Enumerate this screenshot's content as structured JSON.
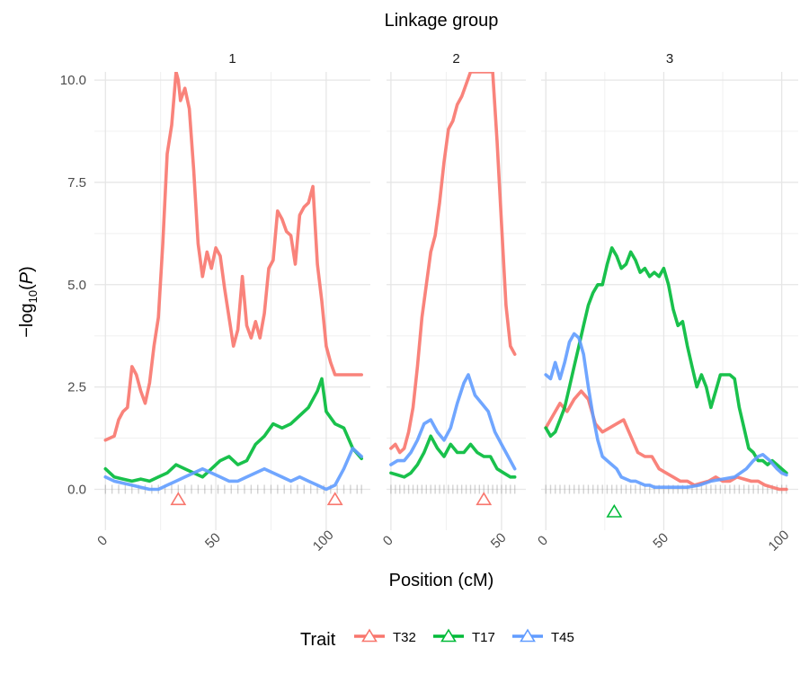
{
  "chart_data": {
    "type": "line",
    "title": "Linkage group",
    "xlabel": "Position (cM)",
    "ylabel_prefix": "−log",
    "ylabel_sub": "10",
    "ylabel_var": "P",
    "ylim": [
      -1.0,
      10.2
    ],
    "y_ticks": [
      0.0,
      2.5,
      5.0,
      7.5,
      10.0
    ],
    "y_tick_labels": [
      "0.0",
      "2.5",
      "5.0",
      "7.5",
      "10.0"
    ],
    "grid": true,
    "legend_position": "bottom",
    "legend_title": "Trait",
    "series_order": [
      "T32",
      "T17",
      "T45"
    ],
    "colors": {
      "T32": "#F8766D",
      "T17": "#00BA38",
      "T45": "#619CFF",
      "marker": "#808080"
    },
    "panels": [
      {
        "label": "1",
        "xlim": [
          -5,
          120
        ],
        "x_ticks": [
          0,
          50,
          100
        ],
        "x_tick_labels": [
          "0",
          "50",
          "100"
        ],
        "series": [
          {
            "name": "T32",
            "x": [
              0,
              4,
              6,
              8,
              10,
              12,
              14,
              16,
              18,
              20,
              22,
              24,
              26,
              28,
              30,
              32,
              33,
              34,
              36,
              38,
              40,
              42,
              44,
              46,
              48,
              50,
              52,
              54,
              56,
              58,
              60,
              62,
              64,
              66,
              68,
              70,
              72,
              74,
              76,
              78,
              80,
              82,
              84,
              86,
              88,
              90,
              92,
              94,
              96,
              98,
              100,
              102,
              104,
              106,
              108,
              110,
              112,
              114,
              116
            ],
            "y": [
              1.2,
              1.3,
              1.7,
              1.9,
              2.0,
              3.0,
              2.8,
              2.4,
              2.1,
              2.6,
              3.5,
              4.2,
              6.0,
              8.2,
              8.9,
              10.2,
              10.0,
              9.5,
              9.8,
              9.3,
              7.8,
              6.0,
              5.2,
              5.8,
              5.4,
              5.9,
              5.7,
              4.9,
              4.2,
              3.5,
              3.9,
              5.2,
              4.0,
              3.7,
              4.1,
              3.7,
              4.3,
              5.4,
              5.6,
              6.8,
              6.6,
              6.3,
              6.2,
              5.5,
              6.7,
              6.9,
              7.0,
              7.4,
              5.5,
              4.6,
              3.5,
              3.1,
              2.8,
              2.8,
              2.8,
              2.8,
              2.8,
              2.8,
              2.8
            ]
          },
          {
            "name": "T17",
            "x": [
              0,
              4,
              8,
              12,
              16,
              20,
              24,
              28,
              32,
              36,
              40,
              44,
              48,
              52,
              56,
              60,
              64,
              68,
              72,
              76,
              80,
              84,
              88,
              92,
              96,
              98,
              100,
              104,
              108,
              112,
              116
            ],
            "y": [
              0.5,
              0.3,
              0.25,
              0.2,
              0.25,
              0.2,
              0.3,
              0.4,
              0.6,
              0.5,
              0.4,
              0.3,
              0.5,
              0.7,
              0.8,
              0.6,
              0.7,
              1.1,
              1.3,
              1.6,
              1.5,
              1.6,
              1.8,
              2.0,
              2.4,
              2.7,
              1.9,
              1.6,
              1.5,
              1.0,
              0.75
            ]
          },
          {
            "name": "T45",
            "x": [
              0,
              4,
              8,
              12,
              16,
              20,
              24,
              28,
              32,
              36,
              40,
              44,
              48,
              52,
              56,
              60,
              64,
              68,
              72,
              76,
              80,
              84,
              88,
              92,
              96,
              100,
              104,
              108,
              112,
              116
            ],
            "y": [
              0.3,
              0.2,
              0.15,
              0.1,
              0.05,
              0.0,
              0.0,
              0.1,
              0.2,
              0.3,
              0.4,
              0.5,
              0.4,
              0.3,
              0.2,
              0.2,
              0.3,
              0.4,
              0.5,
              0.4,
              0.3,
              0.2,
              0.3,
              0.2,
              0.1,
              0.0,
              0.1,
              0.5,
              1.0,
              0.8
            ]
          }
        ],
        "triangles": [
          {
            "trait": "T32",
            "x": 33,
            "y": -0.25
          },
          {
            "trait": "T32",
            "x": 104,
            "y": -0.25
          }
        ],
        "markers": [
          0,
          3,
          6,
          9,
          12,
          15,
          18,
          21,
          24,
          27,
          30,
          33,
          36,
          39,
          42,
          45,
          48,
          51,
          54,
          57,
          60,
          63,
          66,
          69,
          72,
          75,
          78,
          81,
          84,
          87,
          90,
          93,
          96,
          99,
          102,
          105,
          108,
          111,
          114,
          116
        ]
      },
      {
        "label": "2",
        "xlim": [
          -2,
          61
        ],
        "x_ticks": [
          0,
          50
        ],
        "x_tick_labels": [
          "0",
          "50"
        ],
        "series": [
          {
            "name": "T32",
            "x": [
              0,
              2,
              4,
              6,
              8,
              10,
              12,
              14,
              16,
              18,
              20,
              22,
              24,
              26,
              28,
              30,
              32,
              34,
              36,
              38,
              40,
              42,
              44,
              46,
              48,
              50,
              52,
              54,
              56
            ],
            "y": [
              1.0,
              1.1,
              0.9,
              1.0,
              1.4,
              2.0,
              3.0,
              4.2,
              5.0,
              5.8,
              6.2,
              7.0,
              8.0,
              8.8,
              9.0,
              9.4,
              9.6,
              9.9,
              10.2,
              10.2,
              10.2,
              10.2,
              10.2,
              10.2,
              8.5,
              6.5,
              4.5,
              3.5,
              3.3
            ]
          },
          {
            "name": "T17",
            "x": [
              0,
              3,
              6,
              9,
              12,
              15,
              18,
              21,
              24,
              27,
              30,
              33,
              36,
              39,
              42,
              45,
              48,
              51,
              54,
              56
            ],
            "y": [
              0.4,
              0.35,
              0.3,
              0.4,
              0.6,
              0.9,
              1.3,
              1.0,
              0.8,
              1.1,
              0.9,
              0.9,
              1.1,
              0.9,
              0.8,
              0.8,
              0.5,
              0.4,
              0.3,
              0.3
            ]
          },
          {
            "name": "T45",
            "x": [
              0,
              3,
              6,
              9,
              12,
              15,
              18,
              21,
              24,
              27,
              30,
              33,
              35,
              38,
              41,
              44,
              47,
              50,
              53,
              56
            ],
            "y": [
              0.6,
              0.7,
              0.7,
              0.9,
              1.2,
              1.6,
              1.7,
              1.4,
              1.2,
              1.5,
              2.1,
              2.6,
              2.8,
              2.3,
              2.1,
              1.9,
              1.4,
              1.1,
              0.8,
              0.5
            ]
          }
        ],
        "triangles": [
          {
            "trait": "T32",
            "x": 42,
            "y": -0.25
          }
        ],
        "markers": [
          0,
          2,
          4,
          6,
          8,
          10,
          12,
          14,
          16,
          18,
          20,
          22,
          24,
          26,
          28,
          30,
          32,
          34,
          36,
          38,
          40,
          42,
          44,
          46,
          48,
          50,
          52,
          54,
          56
        ]
      },
      {
        "label": "3",
        "xlim": [
          -2,
          107
        ],
        "x_ticks": [
          0,
          50,
          100
        ],
        "x_tick_labels": [
          "0",
          "50",
          "100"
        ],
        "series": [
          {
            "name": "T32",
            "x": [
              0,
              3,
              6,
              9,
              12,
              15,
              18,
              21,
              24,
              27,
              30,
              33,
              36,
              39,
              42,
              45,
              48,
              51,
              54,
              57,
              60,
              63,
              66,
              69,
              72,
              75,
              78,
              81,
              84,
              87,
              90,
              93,
              96,
              99,
              102
            ],
            "y": [
              1.5,
              1.8,
              2.1,
              1.9,
              2.2,
              2.4,
              2.2,
              1.6,
              1.4,
              1.5,
              1.6,
              1.7,
              1.3,
              0.9,
              0.8,
              0.8,
              0.5,
              0.4,
              0.3,
              0.2,
              0.2,
              0.1,
              0.15,
              0.2,
              0.3,
              0.2,
              0.2,
              0.3,
              0.25,
              0.2,
              0.2,
              0.1,
              0.05,
              0.0,
              0.0
            ]
          },
          {
            "name": "T17",
            "x": [
              0,
              2,
              4,
              6,
              8,
              10,
              12,
              14,
              16,
              18,
              20,
              22,
              24,
              26,
              28,
              30,
              32,
              34,
              36,
              38,
              40,
              42,
              44,
              46,
              48,
              50,
              52,
              54,
              56,
              58,
              60,
              62,
              64,
              66,
              68,
              70,
              72,
              74,
              76,
              78,
              80,
              82,
              84,
              86,
              88,
              90,
              92,
              94,
              96,
              98,
              100,
              102
            ],
            "y": [
              1.5,
              1.3,
              1.4,
              1.7,
              2.0,
              2.5,
              3.0,
              3.5,
              4.0,
              4.5,
              4.8,
              5.0,
              5.0,
              5.5,
              5.9,
              5.7,
              5.4,
              5.5,
              5.8,
              5.6,
              5.3,
              5.4,
              5.2,
              5.3,
              5.2,
              5.4,
              5.0,
              4.4,
              4.0,
              4.1,
              3.5,
              3.0,
              2.5,
              2.8,
              2.5,
              2.0,
              2.4,
              2.8,
              2.8,
              2.8,
              2.7,
              2.0,
              1.5,
              1.0,
              0.9,
              0.7,
              0.7,
              0.6,
              0.7,
              0.6,
              0.5,
              0.4
            ]
          },
          {
            "name": "T45",
            "x": [
              0,
              2,
              4,
              6,
              8,
              10,
              12,
              14,
              16,
              18,
              20,
              22,
              24,
              26,
              28,
              30,
              32,
              34,
              36,
              38,
              40,
              42,
              44,
              46,
              48,
              50,
              55,
              60,
              65,
              70,
              75,
              80,
              85,
              88,
              90,
              92,
              95,
              98,
              100,
              102
            ],
            "y": [
              2.8,
              2.7,
              3.1,
              2.7,
              3.1,
              3.6,
              3.8,
              3.7,
              3.3,
              2.5,
              1.8,
              1.2,
              0.8,
              0.7,
              0.6,
              0.5,
              0.3,
              0.25,
              0.2,
              0.2,
              0.15,
              0.1,
              0.1,
              0.05,
              0.05,
              0.05,
              0.05,
              0.05,
              0.1,
              0.2,
              0.25,
              0.3,
              0.5,
              0.7,
              0.8,
              0.85,
              0.7,
              0.5,
              0.4,
              0.35
            ]
          }
        ],
        "triangles": [
          {
            "trait": "T17",
            "x": 29,
            "y": -0.55
          }
        ],
        "markers": [
          0,
          2,
          4,
          6,
          8,
          10,
          12,
          14,
          16,
          18,
          20,
          22,
          24,
          26,
          28,
          30,
          32,
          34,
          36,
          38,
          40,
          42,
          44,
          46,
          48,
          50,
          52,
          54,
          56,
          58,
          60,
          62,
          64,
          66,
          68,
          70,
          72,
          74,
          76,
          78,
          80,
          82,
          84,
          86,
          88,
          90,
          92,
          94,
          96,
          98,
          100,
          102
        ]
      }
    ]
  }
}
